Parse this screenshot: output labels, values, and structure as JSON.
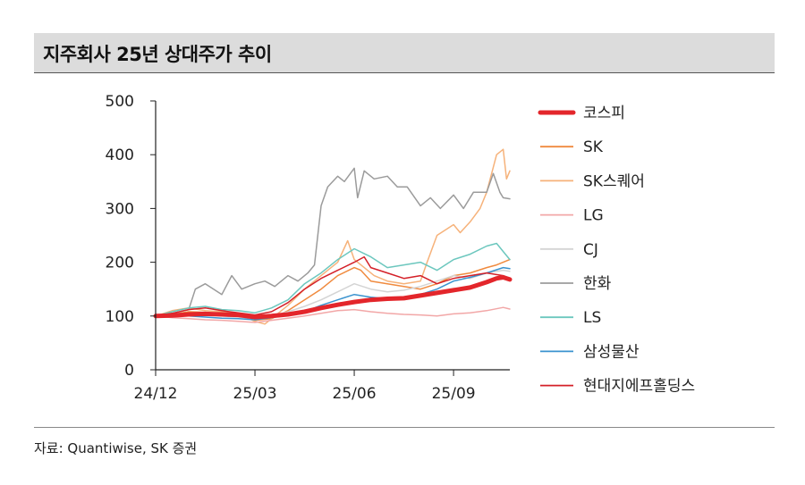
{
  "header": {
    "title": "지주회사 25년 상대주가 추이"
  },
  "footer": {
    "source": "자료: Quantiwise, SK 증권"
  },
  "chart_data": {
    "type": "line",
    "title": "지주회사 25년 상대주가 추이",
    "xlabel": "",
    "ylabel": "",
    "ylim": [
      0,
      500
    ],
    "yticks": [
      0,
      100,
      200,
      300,
      400,
      500
    ],
    "xticks": [
      "24/12",
      "25/03",
      "25/06",
      "25/09"
    ],
    "x_tick_months": [
      0,
      3,
      6,
      9
    ],
    "x_range_months": [
      0,
      10.7
    ],
    "legend_position": "right",
    "grid": false,
    "series": [
      {
        "name": "코스피",
        "color": "#e3262b",
        "width": 5,
        "x": [
          0,
          0.5,
          1,
          1.5,
          2,
          2.5,
          3,
          3.5,
          4,
          4.5,
          5,
          5.5,
          6,
          6.5,
          7,
          7.5,
          8,
          8.5,
          9,
          9.5,
          10,
          10.3,
          10.5,
          10.7
        ],
        "values": [
          100,
          101,
          103,
          104,
          103,
          102,
          98,
          100,
          103,
          108,
          115,
          121,
          126,
          130,
          132,
          133,
          138,
          143,
          148,
          153,
          163,
          170,
          172,
          168
        ]
      },
      {
        "name": "SK",
        "color": "#f08a3e",
        "width": 1.5,
        "x": [
          0,
          0.5,
          1,
          1.5,
          2,
          2.5,
          3,
          3.5,
          4,
          4.5,
          5,
          5.5,
          6,
          6.2,
          6.5,
          7,
          7.5,
          8,
          8.5,
          9,
          9.5,
          10,
          10.3,
          10.5,
          10.7
        ],
        "values": [
          100,
          103,
          108,
          107,
          104,
          102,
          92,
          95,
          110,
          130,
          150,
          175,
          190,
          185,
          165,
          160,
          155,
          150,
          160,
          175,
          180,
          190,
          195,
          200,
          205
        ]
      },
      {
        "name": "SK스퀘어",
        "color": "#f6b27a",
        "width": 1.5,
        "x": [
          0,
          0.5,
          1,
          1.5,
          2,
          2.5,
          3,
          3.3,
          3.5,
          4,
          4.5,
          5,
          5.5,
          5.8,
          6,
          6.3,
          6.6,
          7,
          7.5,
          8,
          8.2,
          8.5,
          9,
          9.2,
          9.5,
          9.8,
          10,
          10.3,
          10.5,
          10.6,
          10.7
        ],
        "values": [
          100,
          110,
          115,
          110,
          108,
          104,
          90,
          85,
          95,
          120,
          150,
          175,
          200,
          240,
          205,
          190,
          175,
          165,
          160,
          165,
          200,
          250,
          270,
          255,
          275,
          300,
          330,
          400,
          410,
          355,
          370
        ]
      },
      {
        "name": "LG",
        "color": "#f2a7a7",
        "width": 1.5,
        "x": [
          0,
          0.5,
          1,
          1.5,
          2,
          2.5,
          3,
          3.5,
          4,
          4.5,
          5,
          5.5,
          6,
          6.5,
          7,
          7.5,
          8,
          8.5,
          9,
          9.5,
          10,
          10.5,
          10.7
        ],
        "values": [
          100,
          97,
          95,
          93,
          92,
          90,
          88,
          92,
          96,
          100,
          105,
          110,
          112,
          108,
          105,
          103,
          102,
          100,
          104,
          106,
          110,
          116,
          113
        ]
      },
      {
        "name": "CJ",
        "color": "#d4d4d4",
        "width": 1.5,
        "x": [
          0,
          0.5,
          1,
          1.5,
          2,
          2.5,
          3,
          3.5,
          4,
          4.5,
          5,
          5.5,
          6,
          6.5,
          7,
          7.5,
          8,
          8.5,
          9,
          9.5,
          10,
          10.5,
          10.7
        ],
        "values": [
          100,
          102,
          104,
          103,
          100,
          98,
          95,
          100,
          108,
          118,
          130,
          145,
          160,
          150,
          145,
          148,
          155,
          165,
          175,
          170,
          180,
          185,
          183
        ]
      },
      {
        "name": "한화",
        "color": "#9b9b9b",
        "width": 1.5,
        "x": [
          0,
          0.5,
          1,
          1.2,
          1.5,
          2,
          2.3,
          2.6,
          3,
          3.3,
          3.6,
          4,
          4.3,
          4.6,
          4.8,
          4.9,
          5,
          5.2,
          5.5,
          5.7,
          6,
          6.1,
          6.3,
          6.6,
          7,
          7.3,
          7.6,
          8,
          8.3,
          8.6,
          9,
          9.3,
          9.6,
          10,
          10.2,
          10.4,
          10.5,
          10.7
        ],
        "values": [
          100,
          105,
          112,
          150,
          160,
          140,
          175,
          150,
          160,
          165,
          155,
          175,
          165,
          180,
          195,
          250,
          305,
          340,
          360,
          350,
          375,
          320,
          370,
          355,
          360,
          340,
          340,
          305,
          320,
          300,
          325,
          300,
          330,
          330,
          365,
          330,
          320,
          318
        ]
      },
      {
        "name": "LS",
        "color": "#6cc7be",
        "width": 1.5,
        "x": [
          0,
          0.5,
          1,
          1.5,
          2,
          2.5,
          3,
          3.5,
          4,
          4.5,
          5,
          5.5,
          6,
          6.5,
          7,
          7.5,
          8,
          8.5,
          9,
          9.5,
          10,
          10.3,
          10.5,
          10.7
        ],
        "values": [
          100,
          108,
          115,
          118,
          112,
          110,
          106,
          115,
          130,
          160,
          180,
          205,
          225,
          210,
          190,
          195,
          200,
          185,
          205,
          215,
          230,
          235,
          220,
          205
        ]
      },
      {
        "name": "삼성물산",
        "color": "#3a93cf",
        "width": 1.5,
        "x": [
          0,
          0.5,
          1,
          1.5,
          2,
          2.5,
          3,
          3.5,
          4,
          4.5,
          5,
          5.5,
          6,
          6.5,
          7,
          7.5,
          8,
          8.5,
          9,
          9.5,
          10,
          10.5,
          10.7
        ],
        "values": [
          100,
          101,
          100,
          98,
          96,
          95,
          93,
          97,
          102,
          108,
          120,
          130,
          140,
          135,
          132,
          135,
          140,
          150,
          165,
          172,
          180,
          190,
          188
        ]
      },
      {
        "name": "현대지에프홀딩스",
        "color": "#d42028",
        "width": 1.5,
        "x": [
          0,
          0.5,
          1,
          1.5,
          2,
          2.5,
          3,
          3.5,
          4,
          4.5,
          5,
          5.5,
          6,
          6.3,
          6.5,
          7,
          7.5,
          8,
          8.5,
          9,
          9.5,
          10,
          10.5,
          10.7
        ],
        "values": [
          100,
          105,
          112,
          115,
          110,
          106,
          102,
          108,
          125,
          150,
          170,
          185,
          200,
          210,
          190,
          180,
          170,
          175,
          160,
          170,
          175,
          180,
          175,
          170
        ]
      }
    ]
  }
}
